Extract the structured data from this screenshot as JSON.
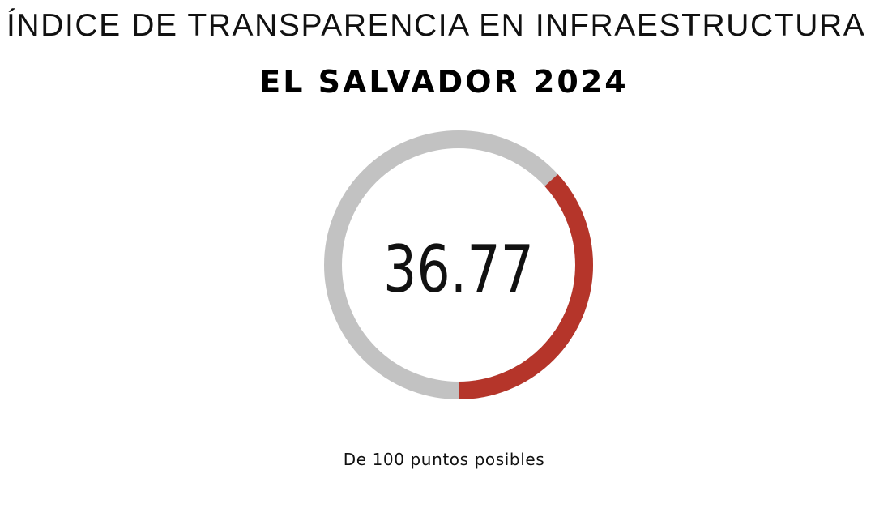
{
  "header": {
    "title": "ÍNDICE DE TRANSPARENCIA EN INFRAESTRUCTURA",
    "subtitle": "EL SALVADOR 2024"
  },
  "chart_data": {
    "type": "pie",
    "value": 36.77,
    "value_label": "36.77",
    "max": 100,
    "caption": "De 100 puntos posibles",
    "colors": {
      "value": "#b5352a",
      "remainder": "#c2c2c2"
    }
  }
}
